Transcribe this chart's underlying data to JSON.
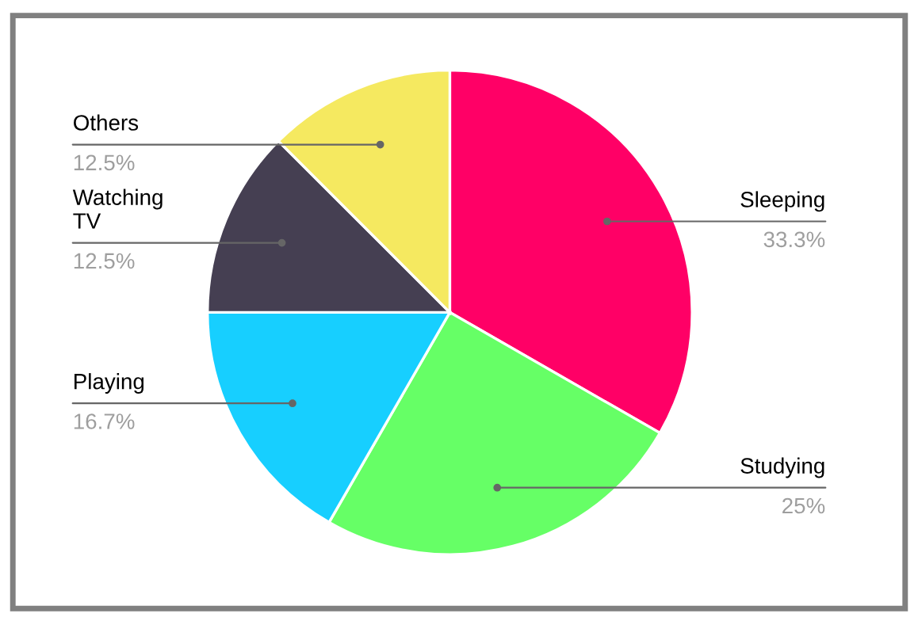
{
  "chart_data": {
    "type": "pie",
    "categories": [
      "Sleeping",
      "Studying",
      "Playing",
      "Watching TV",
      "Others"
    ],
    "values": [
      33.3,
      25,
      16.7,
      12.5,
      12.5
    ],
    "value_labels": [
      "33.3%",
      "25%",
      "16.7%",
      "12.5%",
      "12.5%"
    ],
    "colors": [
      "#ff0066",
      "#66ff66",
      "#17cfff",
      "#453f52",
      "#f5e960"
    ],
    "legend": false
  }
}
